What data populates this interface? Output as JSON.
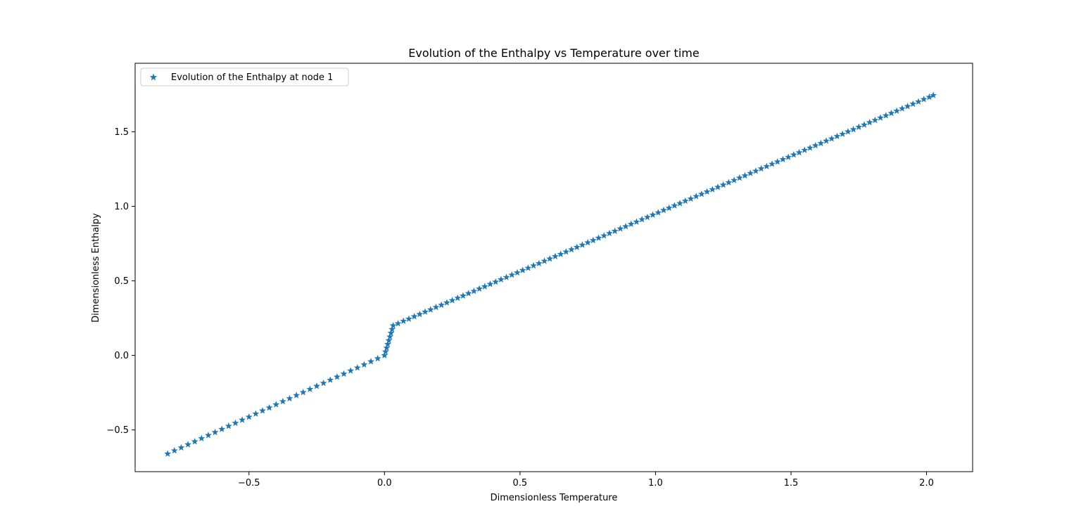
{
  "chart_data": {
    "type": "scatter",
    "title": "Evolution of the Enthalpy vs Temperature over time",
    "xlabel": "Dimensionless Temperature",
    "ylabel": "Dimensionless Enthalpy",
    "xlim": [
      -0.92,
      2.17
    ],
    "ylim": [
      -0.78,
      1.96
    ],
    "xticks": [
      -0.5,
      0.0,
      0.5,
      1.0,
      1.5,
      2.0
    ],
    "xtick_labels": [
      "−0.5",
      "0.0",
      "0.5",
      "1.0",
      "1.5",
      "2.0"
    ],
    "yticks": [
      -0.5,
      0.0,
      0.5,
      1.0,
      1.5
    ],
    "ytick_labels": [
      "−0.5",
      "0.0",
      "0.5",
      "1.0",
      "1.5"
    ],
    "grid": false,
    "legend_position": "top-left",
    "marker": "star",
    "color": "#1f77b4",
    "series": [
      {
        "name": "Evolution of the Enthalpy at node 1",
        "x": [
          -0.8,
          -0.775,
          -0.75,
          -0.725,
          -0.7,
          -0.675,
          -0.65,
          -0.625,
          -0.6,
          -0.575,
          -0.55,
          -0.525,
          -0.5,
          -0.475,
          -0.45,
          -0.425,
          -0.4,
          -0.375,
          -0.35,
          -0.325,
          -0.3,
          -0.275,
          -0.25,
          -0.225,
          -0.2,
          -0.175,
          -0.15,
          -0.125,
          -0.1,
          -0.075,
          -0.05,
          -0.025,
          0.0,
          0.004,
          0.008,
          0.012,
          0.016,
          0.02,
          0.024,
          0.028,
          0.032,
          0.05,
          0.07,
          0.09,
          0.11,
          0.13,
          0.15,
          0.17,
          0.19,
          0.21,
          0.23,
          0.25,
          0.27,
          0.29,
          0.31,
          0.33,
          0.35,
          0.37,
          0.39,
          0.41,
          0.43,
          0.45,
          0.47,
          0.49,
          0.51,
          0.53,
          0.55,
          0.57,
          0.59,
          0.61,
          0.63,
          0.65,
          0.67,
          0.69,
          0.71,
          0.73,
          0.75,
          0.77,
          0.79,
          0.81,
          0.83,
          0.85,
          0.87,
          0.89,
          0.91,
          0.93,
          0.95,
          0.97,
          0.99,
          1.01,
          1.03,
          1.05,
          1.07,
          1.09,
          1.11,
          1.13,
          1.15,
          1.17,
          1.19,
          1.21,
          1.23,
          1.25,
          1.27,
          1.29,
          1.31,
          1.33,
          1.35,
          1.37,
          1.39,
          1.41,
          1.43,
          1.45,
          1.47,
          1.49,
          1.51,
          1.53,
          1.55,
          1.57,
          1.59,
          1.61,
          1.63,
          1.65,
          1.67,
          1.69,
          1.71,
          1.73,
          1.75,
          1.77,
          1.79,
          1.81,
          1.83,
          1.85,
          1.87,
          1.89,
          1.91,
          1.93,
          1.95,
          1.97,
          1.99,
          2.01,
          2.025
        ],
        "y": [
          -0.66,
          -0.639,
          -0.619,
          -0.598,
          -0.578,
          -0.557,
          -0.536,
          -0.516,
          -0.495,
          -0.474,
          -0.454,
          -0.433,
          -0.413,
          -0.392,
          -0.371,
          -0.351,
          -0.33,
          -0.309,
          -0.289,
          -0.268,
          -0.248,
          -0.227,
          -0.206,
          -0.186,
          -0.165,
          -0.144,
          -0.124,
          -0.103,
          -0.083,
          -0.062,
          -0.041,
          -0.021,
          0.0,
          0.025,
          0.05,
          0.075,
          0.1,
          0.125,
          0.15,
          0.175,
          0.2,
          0.214,
          0.23,
          0.245,
          0.261,
          0.276,
          0.292,
          0.307,
          0.323,
          0.338,
          0.354,
          0.369,
          0.385,
          0.4,
          0.416,
          0.431,
          0.447,
          0.462,
          0.478,
          0.493,
          0.509,
          0.524,
          0.54,
          0.555,
          0.571,
          0.586,
          0.602,
          0.617,
          0.633,
          0.648,
          0.664,
          0.679,
          0.695,
          0.71,
          0.726,
          0.741,
          0.757,
          0.772,
          0.788,
          0.803,
          0.819,
          0.834,
          0.85,
          0.865,
          0.881,
          0.896,
          0.912,
          0.927,
          0.943,
          0.958,
          0.974,
          0.989,
          1.005,
          1.02,
          1.036,
          1.051,
          1.067,
          1.082,
          1.098,
          1.113,
          1.129,
          1.144,
          1.16,
          1.175,
          1.191,
          1.206,
          1.222,
          1.237,
          1.253,
          1.268,
          1.284,
          1.299,
          1.315,
          1.33,
          1.346,
          1.361,
          1.377,
          1.392,
          1.408,
          1.423,
          1.439,
          1.454,
          1.47,
          1.485,
          1.501,
          1.516,
          1.532,
          1.547,
          1.563,
          1.578,
          1.594,
          1.609,
          1.625,
          1.64,
          1.656,
          1.671,
          1.687,
          1.702,
          1.718,
          1.733,
          1.745
        ]
      }
    ]
  }
}
